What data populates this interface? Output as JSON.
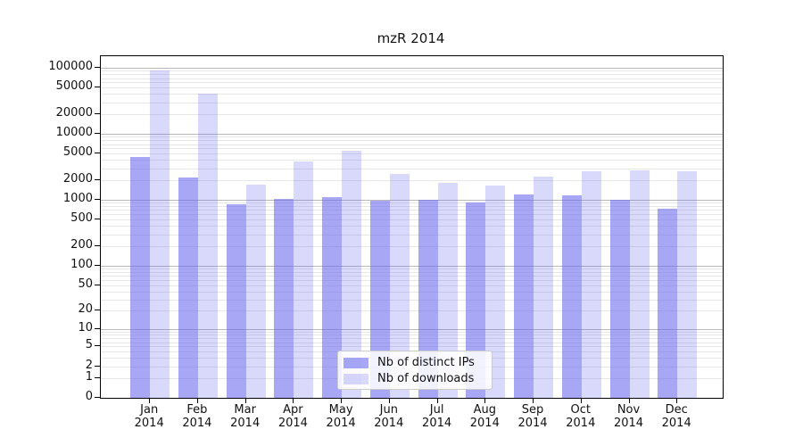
{
  "title": "mzR 2014",
  "chart_data": {
    "type": "bar",
    "title": "mzR 2014",
    "categories": [
      "Jan 2014",
      "Feb 2014",
      "Mar 2014",
      "Apr 2014",
      "May 2014",
      "Jun 2014",
      "Jul 2014",
      "Aug 2014",
      "Sep 2014",
      "Oct 2014",
      "Nov 2014",
      "Dec 2014"
    ],
    "series": [
      {
        "name": "Nb of distinct IPs",
        "color": "rgba(98,98,238,0.56)",
        "values": [
          4400,
          2200,
          860,
          1030,
          1100,
          970,
          1000,
          910,
          1200,
          1170,
          1000,
          730
        ]
      },
      {
        "name": "Nb of downloads",
        "color": "rgba(98,98,238,0.24)",
        "values": [
          91000,
          40000,
          1700,
          3800,
          5500,
          2450,
          1800,
          1650,
          2250,
          2700,
          2790,
          2700
        ]
      }
    ],
    "xlabel": "",
    "ylabel": "",
    "yscale": "log(value+1)",
    "yticks": [
      0,
      1,
      2,
      5,
      10,
      20,
      50,
      100,
      200,
      500,
      1000,
      2000,
      5000,
      10000,
      20000,
      50000,
      100000
    ],
    "ylim": [
      0,
      150000
    ],
    "grid": true,
    "legend_position": "lower center",
    "grid_major_color": "#b9b9b9",
    "grid_minor_color": "#e7e7e7"
  }
}
